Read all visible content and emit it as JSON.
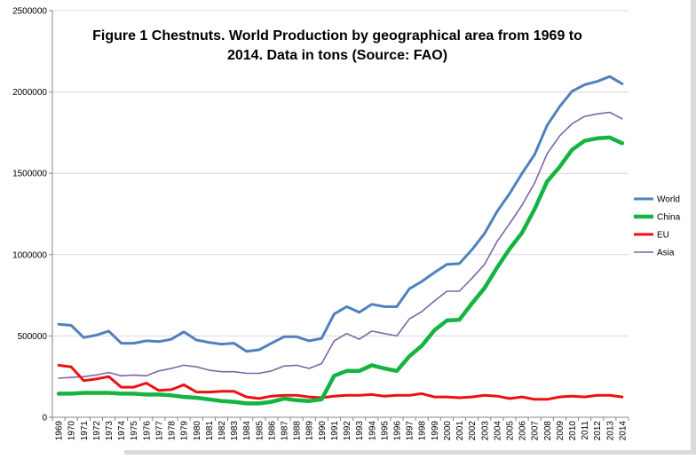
{
  "chart_data": {
    "type": "line",
    "title": "Figure 1 Chestnuts. World Production by geographical area from 1969 to 2014. Data in tons (Source: FAO)",
    "title_lines": [
      "Figure 1 Chestnuts. World Production by geographical area from 1969 to",
      "2014. Data in tons (Source: FAO)"
    ],
    "xlabel": "",
    "ylabel": "",
    "ylim": [
      0,
      2500000
    ],
    "y_ticks": [
      0,
      500000,
      1000000,
      1500000,
      2000000,
      2500000
    ],
    "y_tick_labels": [
      "0",
      "500000",
      "1000000",
      "1500000",
      "2000000",
      "2500000"
    ],
    "grid": "horizontal",
    "legend_position": "right",
    "x": [
      1969,
      1970,
      1971,
      1972,
      1973,
      1974,
      1975,
      1976,
      1977,
      1978,
      1979,
      1980,
      1981,
      1982,
      1983,
      1984,
      1985,
      1986,
      1987,
      1988,
      1989,
      1990,
      1991,
      1992,
      1993,
      1994,
      1995,
      1996,
      1997,
      1998,
      1999,
      2000,
      2001,
      2002,
      2003,
      2004,
      2005,
      2006,
      2007,
      2008,
      2009,
      2010,
      2011,
      2012,
      2013,
      2014
    ],
    "x_tick_labels": [
      "1969",
      "1970",
      "1971",
      "1972",
      "1973",
      "1974",
      "1975",
      "1976",
      "1977",
      "1978",
      "1979",
      "1980",
      "1981",
      "1982",
      "1983",
      "1984",
      "1985",
      "1986",
      "1987",
      "1988",
      "1989",
      "1990",
      "1991",
      "1992",
      "1993",
      "1994",
      "1995",
      "1996",
      "1997",
      "1998",
      "1999",
      "2000",
      "2001",
      "2002",
      "2003",
      "2004",
      "2005",
      "2006",
      "2007",
      "2008",
      "2009",
      "2010",
      "2011",
      "2012",
      "2013",
      "2014"
    ],
    "series": [
      {
        "name": "World",
        "color": "#4f81bd",
        "values": [
          572000,
          565000,
          490000,
          505000,
          530000,
          455000,
          455000,
          470000,
          465000,
          480000,
          525000,
          475000,
          460000,
          450000,
          455000,
          405000,
          415000,
          455000,
          495000,
          495000,
          470000,
          485000,
          635000,
          680000,
          645000,
          695000,
          680000,
          680000,
          790000,
          835000,
          890000,
          940000,
          945000,
          1030000,
          1130000,
          1265000,
          1375000,
          1500000,
          1615000,
          1795000,
          1910000,
          2005000,
          2045000,
          2065000,
          2095000,
          2050000
        ]
      },
      {
        "name": "China",
        "color": "#14b342",
        "values": [
          145000,
          145000,
          150000,
          150000,
          150000,
          145000,
          145000,
          140000,
          140000,
          135000,
          125000,
          120000,
          110000,
          100000,
          95000,
          85000,
          85000,
          95000,
          115000,
          105000,
          100000,
          110000,
          255000,
          285000,
          285000,
          320000,
          300000,
          285000,
          375000,
          440000,
          535000,
          595000,
          600000,
          700000,
          795000,
          920000,
          1035000,
          1135000,
          1280000,
          1450000,
          1540000,
          1645000,
          1700000,
          1715000,
          1720000,
          1685000
        ]
      },
      {
        "name": "EU",
        "color": "#ee1111",
        "values": [
          320000,
          310000,
          225000,
          235000,
          250000,
          185000,
          185000,
          210000,
          165000,
          170000,
          200000,
          155000,
          155000,
          160000,
          160000,
          125000,
          115000,
          130000,
          135000,
          135000,
          125000,
          120000,
          130000,
          135000,
          135000,
          140000,
          130000,
          135000,
          135000,
          145000,
          125000,
          125000,
          120000,
          125000,
          135000,
          130000,
          115000,
          125000,
          110000,
          110000,
          125000,
          130000,
          125000,
          135000,
          135000,
          125000
        ]
      },
      {
        "name": "Asia",
        "color": "#8064a2",
        "values": [
          240000,
          245000,
          250000,
          260000,
          275000,
          255000,
          260000,
          255000,
          285000,
          300000,
          320000,
          310000,
          290000,
          280000,
          280000,
          270000,
          270000,
          285000,
          315000,
          320000,
          300000,
          330000,
          470000,
          515000,
          480000,
          530000,
          515000,
          500000,
          605000,
          650000,
          715000,
          775000,
          775000,
          855000,
          940000,
          1080000,
          1190000,
          1305000,
          1440000,
          1620000,
          1730000,
          1805000,
          1850000,
          1865000,
          1875000,
          1835000
        ]
      }
    ]
  }
}
